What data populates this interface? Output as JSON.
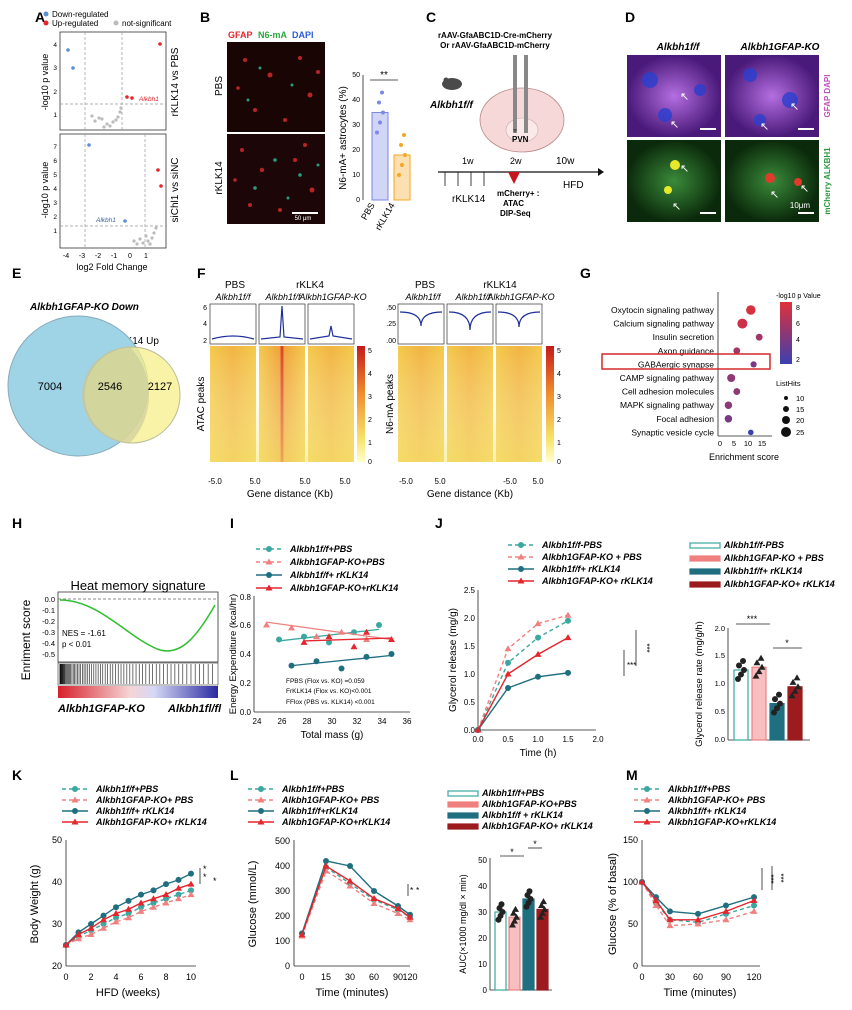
{
  "panels": {
    "A": "A",
    "B": "B",
    "C": "C",
    "D": "D",
    "E": "E",
    "F": "F",
    "G": "G",
    "H": "H",
    "I": "I",
    "J": "J",
    "K": "K",
    "L": "L",
    "M": "M"
  },
  "colors": {
    "teal": "#3aa8a0",
    "salmon": "#f08080",
    "darkteal": "#1f6f80",
    "red": "#e4262d",
    "darkred": "#9b1b1f",
    "lightblue": "#9fd3e6",
    "yellow": "#f3ec7a",
    "purple": "#6a3fb4",
    "pbsbar": "#7c88e6",
    "klkbar": "#f5a623"
  },
  "a": {
    "legend": [
      "Down-regulated",
      "Up-regulated",
      "not-significant"
    ],
    "top_label": "rKLK14 vs PBS",
    "bottom_label": "siChl1 vs siNC",
    "ylabel": "-log10 p value",
    "xlabel": "log2 Fold Change",
    "gene_top": "Alkbh1",
    "gene_bottom": "Alkbh1",
    "xticks": [
      "-4",
      "-3",
      "-2",
      "-1",
      "0",
      "1"
    ],
    "yticks_top": [
      "4",
      "3",
      "2",
      "1"
    ],
    "yticks_bottom": [
      "7",
      "6",
      "5",
      "4",
      "3",
      "2",
      "1"
    ]
  },
  "b": {
    "stain_gfap": "GFAP",
    "stain_n6ma": "N6-mA",
    "stain_dapi": "DAPI",
    "row_pbs": "PBS",
    "row_klk": "rKLK14",
    "scale": "50 μm",
    "ylabel": "N6-mA+ astrocytes (%)",
    "cats": [
      "PBS",
      "rKLK14"
    ],
    "sig": "**",
    "yticks": [
      "0",
      "10",
      "20",
      "30",
      "40",
      "50"
    ]
  },
  "c": {
    "virus1": "rAAV-GfaABC1D-Cre-mCherry",
    "virus2": "Or rAAV-GfaABC1D-mCherry",
    "mouse": "Alkbh1f/f",
    "region": "PVN",
    "t1": "1w",
    "t2": "2w",
    "t3": "10w",
    "hfd": "HFD",
    "treat": "rKLK14",
    "out1": "mCherry+ :",
    "out2": "ATAC",
    "out3": "DIP-Seq"
  },
  "d": {
    "col1": "Alkbh1f/f",
    "col2": "Alkbh1GFAP-KO",
    "side1": "GFAP DAPI",
    "side2": "mCherry ALKBH1",
    "scale": "10μm"
  },
  "e": {
    "label_left": "Alkbh1GFAP-KO Down",
    "label_right": "rKLK14 Up",
    "n_left": "7004",
    "n_mid": "2546",
    "n_right": "2127"
  },
  "f": {
    "left_hdr": [
      "PBS",
      "rKLK4"
    ],
    "right_hdr": [
      "PBS",
      "rKLK14"
    ],
    "sub": [
      "Alkbh1f/f",
      "Alkbh1f/f",
      "Alkbh1GFAP-KO"
    ],
    "ylab_left": "ATAC peaks",
    "ylab_right": "N6-mA peaks",
    "xlabel": "Gene distance (Kb)",
    "ticks": [
      "-5.0",
      "5.0",
      "-5.0",
      "5.0",
      "-5.0",
      "5.0"
    ],
    "cb": [
      "5",
      "4",
      "3",
      "2",
      "1",
      "0"
    ],
    "prof_left": [
      "6",
      "4",
      "2"
    ],
    "prof_right": [
      ".50",
      ".25",
      ".00"
    ]
  },
  "g": {
    "terms": [
      "Oxytocin signaling pathway",
      "Calcium signaling pathway",
      "Insulin secretion",
      "Axon guidance",
      "GABAergic synapse",
      "CAMP signaling pathway",
      "Cell adhesion molecules",
      "MAPK signaling pathway",
      "Focal adhesion",
      "Synaptic vesicle cycle"
    ],
    "xlabel": "Enrichment score",
    "xticks": [
      "0",
      "5",
      "10",
      "15"
    ],
    "cb_title": "-log10 p Value",
    "cb_ticks": [
      "8",
      "6",
      "4",
      "2"
    ],
    "size_title": "ListHits",
    "size_ticks": [
      "10",
      "15",
      "20",
      "25"
    ]
  },
  "h": {
    "title": "Heat memory signature",
    "ylabel": "Enriment score",
    "nes": "NES = -1.61",
    "p": "p < 0.01",
    "left": "Alkbh1GFAP-KO",
    "right": "Alkbh1fl/fl",
    "yticks": [
      "0.0",
      "-0.1",
      "-0.2",
      "-0.3",
      "-0.4",
      "-0.5"
    ]
  },
  "i": {
    "legend": [
      "Alkbh1f/f+PBS",
      "Alkbh1GFAP-KO+PBS",
      "Alkbh1f/f+ rKLK14",
      "Alkbh1GFAP-KO+rKLK14"
    ],
    "ylabel": "Energy Expenditure (kcal/hr)",
    "xlabel": "Total mass (g)",
    "stat1": "FPBS (Flox vs. KO) =0.059",
    "stat2": "FrKLK14 (Flox vs. KO)<0.001",
    "stat3": "FFlox (PBS vs. KLK14) <0.001",
    "xticks": [
      "24",
      "26",
      "28",
      "30",
      "32",
      "34",
      "36"
    ],
    "yticks": [
      "0.0",
      "0.2",
      "0.4",
      "0.6",
      "0.8"
    ]
  },
  "j": {
    "legend": [
      "Alkbh1f/f-PBS",
      "Alkbh1GFAP-KO + PBS",
      "Alkbh1f/f+ rKLK14",
      "Alkbh1GFAP-KO+ rKLK14"
    ],
    "ylabel": "Glycerol release (mg/g)",
    "xlabel": "Time (h)",
    "sig": "***",
    "bar_ylabel": "Glycerol release rate (mg/g/h)",
    "bar_sig1": "***",
    "bar_sig2": "*",
    "xticks": [
      "0.0",
      "0.5",
      "1.0",
      "1.5",
      "2.0"
    ],
    "yticks": [
      "0.0",
      "0.5",
      "1.0",
      "1.5",
      "2.0",
      "2.5"
    ],
    "bar_yticks": [
      "0.0",
      "0.5",
      "1.0",
      "1.5",
      "2.0"
    ]
  },
  "k": {
    "legend": [
      "Alkbh1f/f+PBS",
      "Alkbh1GFAP-KO+ PBS",
      "Alkbh1f/f+ rKLK14",
      "Alkbh1GFAP-KO+ rKLK14"
    ],
    "ylabel": "Body Weight (g)",
    "xlabel": "HFD (weeks)",
    "sig": "*",
    "xticks": [
      "0",
      "2",
      "4",
      "6",
      "8",
      "10"
    ],
    "yticks": [
      "20",
      "30",
      "40",
      "50"
    ]
  },
  "l": {
    "legend": [
      "Alkbh1f/f+PBS",
      "Alkbh1GFAP-KO+ PBS",
      "Alkbh1f/f+rKLK14",
      "Alkbh1GFAP-KO+rKLK14"
    ],
    "ylabel": "Glucose (mmol/L)",
    "xlabel": "Time (minutes)",
    "bar_legend": [
      "Alkbh1f/f+PBS",
      "Alkbh1GFAP-KO+PBS",
      "Alkbh1f/f + rKLK14",
      "Alkbh1GFAP-KO+ rKLK14"
    ],
    "bar_ylabel": "AUC(×1000 mg/dl × min)",
    "sig": "*",
    "xticks": [
      "0",
      "15",
      "30",
      "60",
      "90",
      "120"
    ],
    "yticks": [
      "0",
      "100",
      "200",
      "300",
      "400",
      "500"
    ],
    "bar_yticks": [
      "0",
      "10",
      "20",
      "30",
      "40",
      "50"
    ]
  },
  "m": {
    "legend": [
      "Alkbh1f/f+PBS",
      "Alkbh1GFAP-KO+ PBS",
      "Alkbh1f/f+ rKLK14",
      "Alkbh1GFAP-KO+rKLK14"
    ],
    "ylabel": "Glucose (% of basal)",
    "xlabel": "Time (minutes)",
    "sig": "***",
    "xticks": [
      "0",
      "30",
      "60",
      "90",
      "120"
    ],
    "yticks": [
      "0",
      "50",
      "100",
      "150"
    ]
  },
  "chart_data": [
    {
      "panel": "B",
      "type": "bar",
      "categories": [
        "PBS",
        "rKLK14"
      ],
      "values": [
        35,
        18
      ],
      "ylabel": "N6-mA+ astrocytes (%)",
      "ylim": [
        0,
        50
      ]
    },
    {
      "panel": "E",
      "type": "venn",
      "sets": [
        "Alkbh1GFAP-KO Down",
        "rKLK14 Up"
      ],
      "values": [
        7004,
        2546,
        2127
      ]
    },
    {
      "panel": "G",
      "type": "scatter",
      "categories": [
        "Oxytocin signaling pathway",
        "Calcium signaling pathway",
        "Insulin secretion",
        "Axon guidance",
        "GABAergic synapse",
        "CAMP signaling pathway",
        "Cell adhesion molecules",
        "MAPK signaling pathway",
        "Focal adhesion",
        "Synaptic vesicle cycle"
      ],
      "enrichment": [
        11,
        8,
        14,
        6,
        12,
        4,
        6,
        3,
        3,
        11
      ],
      "neglog10p": [
        8.5,
        8,
        6,
        6,
        4,
        5,
        5,
        5,
        4,
        1
      ],
      "listhits": [
        20,
        22,
        12,
        12,
        10,
        16,
        12,
        14,
        14,
        8
      ],
      "xlabel": "Enrichment score"
    },
    {
      "panel": "J",
      "type": "line",
      "x": [
        0,
        0.5,
        1.0,
        1.5
      ],
      "series": [
        {
          "name": "Alkbh1f/f-PBS",
          "values": [
            0,
            1.2,
            1.65,
            1.95
          ]
        },
        {
          "name": "Alkbh1GFAP-KO + PBS",
          "values": [
            0,
            1.45,
            1.9,
            2.05
          ]
        },
        {
          "name": "Alkbh1f/f+ rKLK14",
          "values": [
            0,
            0.75,
            0.95,
            1.02
          ]
        },
        {
          "name": "Alkbh1GFAP-KO+ rKLK14",
          "values": [
            0,
            1.0,
            1.35,
            1.65
          ]
        }
      ],
      "xlabel": "Time (h)",
      "ylabel": "Glycerol release (mg/g)",
      "ylim": [
        0,
        2.5
      ]
    },
    {
      "panel": "J-bar",
      "type": "bar",
      "categories": [
        "Alkbh1f/f-PBS",
        "Alkbh1GFAP-KO + PBS",
        "Alkbh1f/f+ rKLK14",
        "Alkbh1GFAP-KO+ rKLK14"
      ],
      "values": [
        1.25,
        1.3,
        0.65,
        0.95
      ],
      "ylabel": "Glycerol release rate (mg/g/h)",
      "ylim": [
        0,
        2.0
      ]
    },
    {
      "panel": "K",
      "type": "line",
      "x": [
        0,
        1,
        2,
        3,
        4,
        5,
        6,
        7,
        8,
        9,
        10
      ],
      "series": [
        {
          "name": "Alkbh1f/f+PBS",
          "values": [
            25,
            27,
            28.5,
            30,
            31.5,
            32.5,
            34,
            35,
            36,
            37,
            38
          ]
        },
        {
          "name": "Alkbh1GFAP-KO+ PBS",
          "values": [
            25,
            26.5,
            27.5,
            29,
            30.5,
            31.5,
            33,
            34,
            35,
            36,
            37
          ]
        },
        {
          "name": "Alkbh1f/f+ rKLK14",
          "values": [
            25,
            28,
            30,
            32,
            34,
            35.5,
            37,
            38,
            39.5,
            40.5,
            42
          ]
        },
        {
          "name": "Alkbh1GFAP-KO+ rKLK14",
          "values": [
            25,
            27.5,
            29,
            31,
            32.5,
            33.5,
            35,
            36,
            37,
            38.5,
            39.5
          ]
        }
      ],
      "xlabel": "HFD (weeks)",
      "ylabel": "Body Weight (g)",
      "ylim": [
        20,
        50
      ]
    },
    {
      "panel": "L",
      "type": "line",
      "x": [
        0,
        15,
        30,
        60,
        90,
        120
      ],
      "series": [
        {
          "name": "Alkbh1f/f+PBS",
          "values": [
            130,
            395,
            330,
            265,
            225,
            195
          ]
        },
        {
          "name": "Alkbh1GFAP-KO+ PBS",
          "values": [
            120,
            380,
            320,
            250,
            210,
            185
          ]
        },
        {
          "name": "Alkbh1f/f+rKLK14",
          "values": [
            130,
            420,
            400,
            300,
            240,
            205
          ]
        },
        {
          "name": "Alkbh1GFAP-KO+rKLK14",
          "values": [
            125,
            400,
            340,
            270,
            230,
            195
          ]
        }
      ],
      "xlabel": "Time (minutes)",
      "ylabel": "Glucose (mmol/L)",
      "ylim": [
        0,
        500
      ]
    },
    {
      "panel": "L-bar",
      "type": "bar",
      "categories": [
        "Alkbh1f/f+PBS",
        "Alkbh1GFAP-KO+PBS",
        "Alkbh1f/f + rKLK14",
        "Alkbh1GFAP-KO+ rKLK14"
      ],
      "values": [
        30,
        28,
        35,
        31
      ],
      "ylabel": "AUC(×1000 mg/dl × min)",
      "ylim": [
        0,
        50
      ]
    },
    {
      "panel": "M",
      "type": "line",
      "x": [
        0,
        15,
        30,
        60,
        90,
        120
      ],
      "series": [
        {
          "name": "Alkbh1f/f+PBS",
          "values": [
            100,
            75,
            55,
            52,
            62,
            72
          ]
        },
        {
          "name": "Alkbh1GFAP-KO+ PBS",
          "values": [
            100,
            72,
            48,
            50,
            55,
            65
          ]
        },
        {
          "name": "Alkbh1f/f+ rKLK14",
          "values": [
            100,
            82,
            65,
            62,
            72,
            82
          ]
        },
        {
          "name": "Alkbh1GFAP-KO+rKLK14",
          "values": [
            100,
            78,
            55,
            55,
            65,
            78
          ]
        }
      ],
      "xlabel": "Time (minutes)",
      "ylabel": "Glucose (% of basal)",
      "ylim": [
        0,
        150
      ]
    }
  ]
}
